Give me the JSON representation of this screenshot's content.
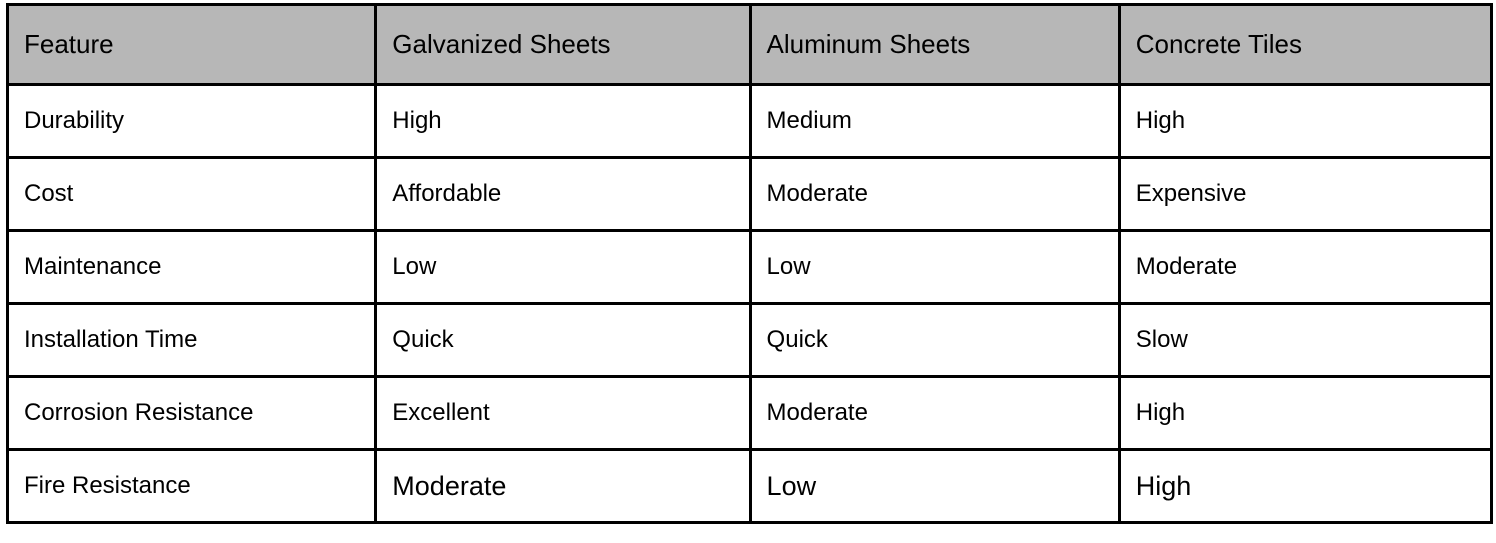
{
  "table": {
    "headers": [
      "Feature",
      "Galvanized Sheets",
      "Aluminum Sheets",
      "Concrete Tiles"
    ],
    "rows": [
      [
        "Durability",
        "High",
        "Medium",
        "High"
      ],
      [
        "Cost",
        "Affordable",
        "Moderate",
        "Expensive"
      ],
      [
        "Maintenance",
        "Low",
        "Low",
        "Moderate"
      ],
      [
        "Installation Time",
        "Quick",
        "Quick",
        "Slow"
      ],
      [
        "Corrosion Resistance",
        "Excellent",
        "Moderate",
        "High"
      ],
      [
        "Fire Resistance",
        "Moderate",
        "Low",
        "High"
      ]
    ],
    "header_bg": "#b7b7b7"
  }
}
